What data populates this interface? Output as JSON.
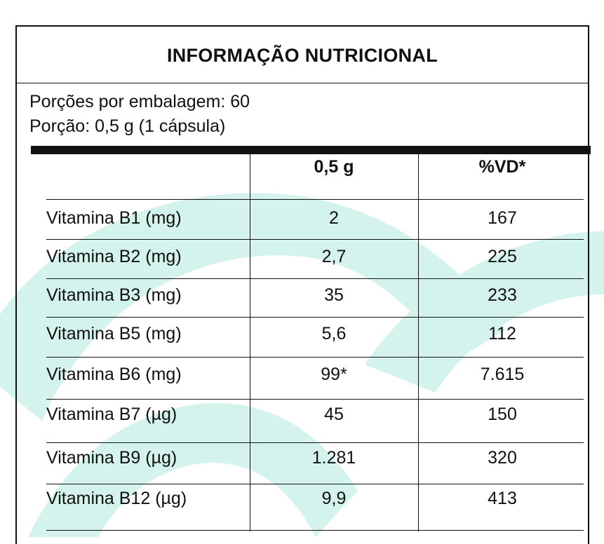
{
  "label": {
    "title": "INFORMAÇÃO NUTRICIONAL",
    "servings_per_package": "Porções por embalagem: 60",
    "serving_size": "Porção: 0,5 g (1 cápsula)",
    "columns": [
      "",
      "0,5 g",
      "%VD*"
    ],
    "rows": [
      {
        "name": "Vitamina B1 (mg)",
        "amount": "2",
        "vd": "167"
      },
      {
        "name": "Vitamina B2 (mg)",
        "amount": "2,7",
        "vd": "225"
      },
      {
        "name": "Vitamina B3 (mg)",
        "amount": "35",
        "vd": "233"
      },
      {
        "name": "Vitamina B5 (mg)",
        "amount": "5,6",
        "vd": "112"
      },
      {
        "name": "Vitamina B6 (mg)",
        "amount": "99*",
        "vd": "7.615"
      },
      {
        "name": "Vitamina B7 (µg)",
        "amount": "45",
        "vd": "150"
      },
      {
        "name": "Vitamina B9 (µg)",
        "amount": "1.281",
        "vd": "320"
      },
      {
        "name": "Vitamina B12 (µg)",
        "amount": "9,9",
        "vd": "413"
      }
    ]
  },
  "colors": {
    "background_shape": "#d3f3ec",
    "text": "#111111"
  }
}
